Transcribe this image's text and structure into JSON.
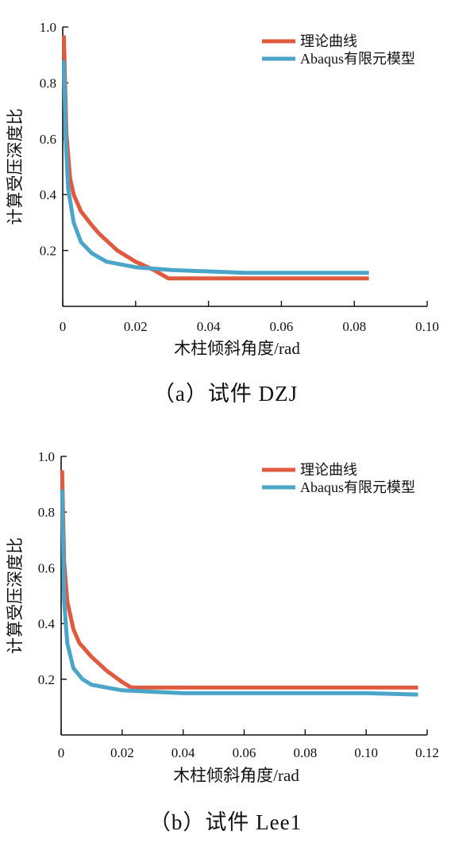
{
  "chart_data": [
    {
      "type": "line",
      "caption": "（a）试件 DZJ",
      "xlabel": "木柱倾斜角度/rad",
      "ylabel": "计算受压深度比",
      "xlim": [
        0,
        0.1
      ],
      "ylim": [
        0,
        1.0
      ],
      "x_ticks": [
        "0",
        "0.02",
        "0.04",
        "0.06",
        "0.08",
        "0.10"
      ],
      "y_ticks": [
        "0.2",
        "0.4",
        "0.6",
        "0.8",
        "1.0"
      ],
      "grid": false,
      "legend_position": "top-right",
      "series": [
        {
          "name": "理论曲线",
          "color": "#e05a3f",
          "x": [
            0.0003,
            0.001,
            0.002,
            0.003,
            0.005,
            0.008,
            0.01,
            0.015,
            0.02,
            0.025,
            0.029,
            0.04,
            0.06,
            0.084
          ],
          "y": [
            0.97,
            0.62,
            0.46,
            0.4,
            0.34,
            0.29,
            0.26,
            0.2,
            0.16,
            0.13,
            0.1,
            0.1,
            0.1,
            0.1
          ]
        },
        {
          "name": "Abaqus有限元模型",
          "color": "#4aa5c9",
          "x": [
            0.0003,
            0.0008,
            0.0015,
            0.003,
            0.005,
            0.008,
            0.012,
            0.02,
            0.03,
            0.05,
            0.084
          ],
          "y": [
            0.88,
            0.6,
            0.42,
            0.3,
            0.23,
            0.19,
            0.16,
            0.14,
            0.13,
            0.12,
            0.12
          ]
        }
      ]
    },
    {
      "type": "line",
      "caption": "（b）试件 Lee1",
      "xlabel": "木柱倾斜角度/rad",
      "ylabel": "计算受压深度比",
      "xlim": [
        0,
        0.12
      ],
      "ylim": [
        0,
        1.0
      ],
      "x_ticks": [
        "0",
        "0.02",
        "0.04",
        "0.06",
        "0.08",
        "0.10",
        "0.12"
      ],
      "y_ticks": [
        "0.2",
        "0.4",
        "0.6",
        "0.8",
        "1.0"
      ],
      "grid": false,
      "legend_position": "top-right",
      "series": [
        {
          "name": "理论曲线",
          "color": "#e05a3f",
          "x": [
            0.0003,
            0.001,
            0.002,
            0.004,
            0.006,
            0.01,
            0.015,
            0.02,
            0.023,
            0.05,
            0.08,
            0.117
          ],
          "y": [
            0.95,
            0.62,
            0.48,
            0.38,
            0.33,
            0.28,
            0.23,
            0.19,
            0.17,
            0.17,
            0.17,
            0.17
          ]
        },
        {
          "name": "Abaqus有限元模型",
          "color": "#4aa5c9",
          "x": [
            0.0003,
            0.001,
            0.002,
            0.004,
            0.007,
            0.01,
            0.015,
            0.02,
            0.04,
            0.06,
            0.08,
            0.1,
            0.117
          ],
          "y": [
            0.88,
            0.48,
            0.33,
            0.24,
            0.2,
            0.18,
            0.17,
            0.16,
            0.15,
            0.15,
            0.15,
            0.15,
            0.145
          ]
        }
      ]
    }
  ]
}
